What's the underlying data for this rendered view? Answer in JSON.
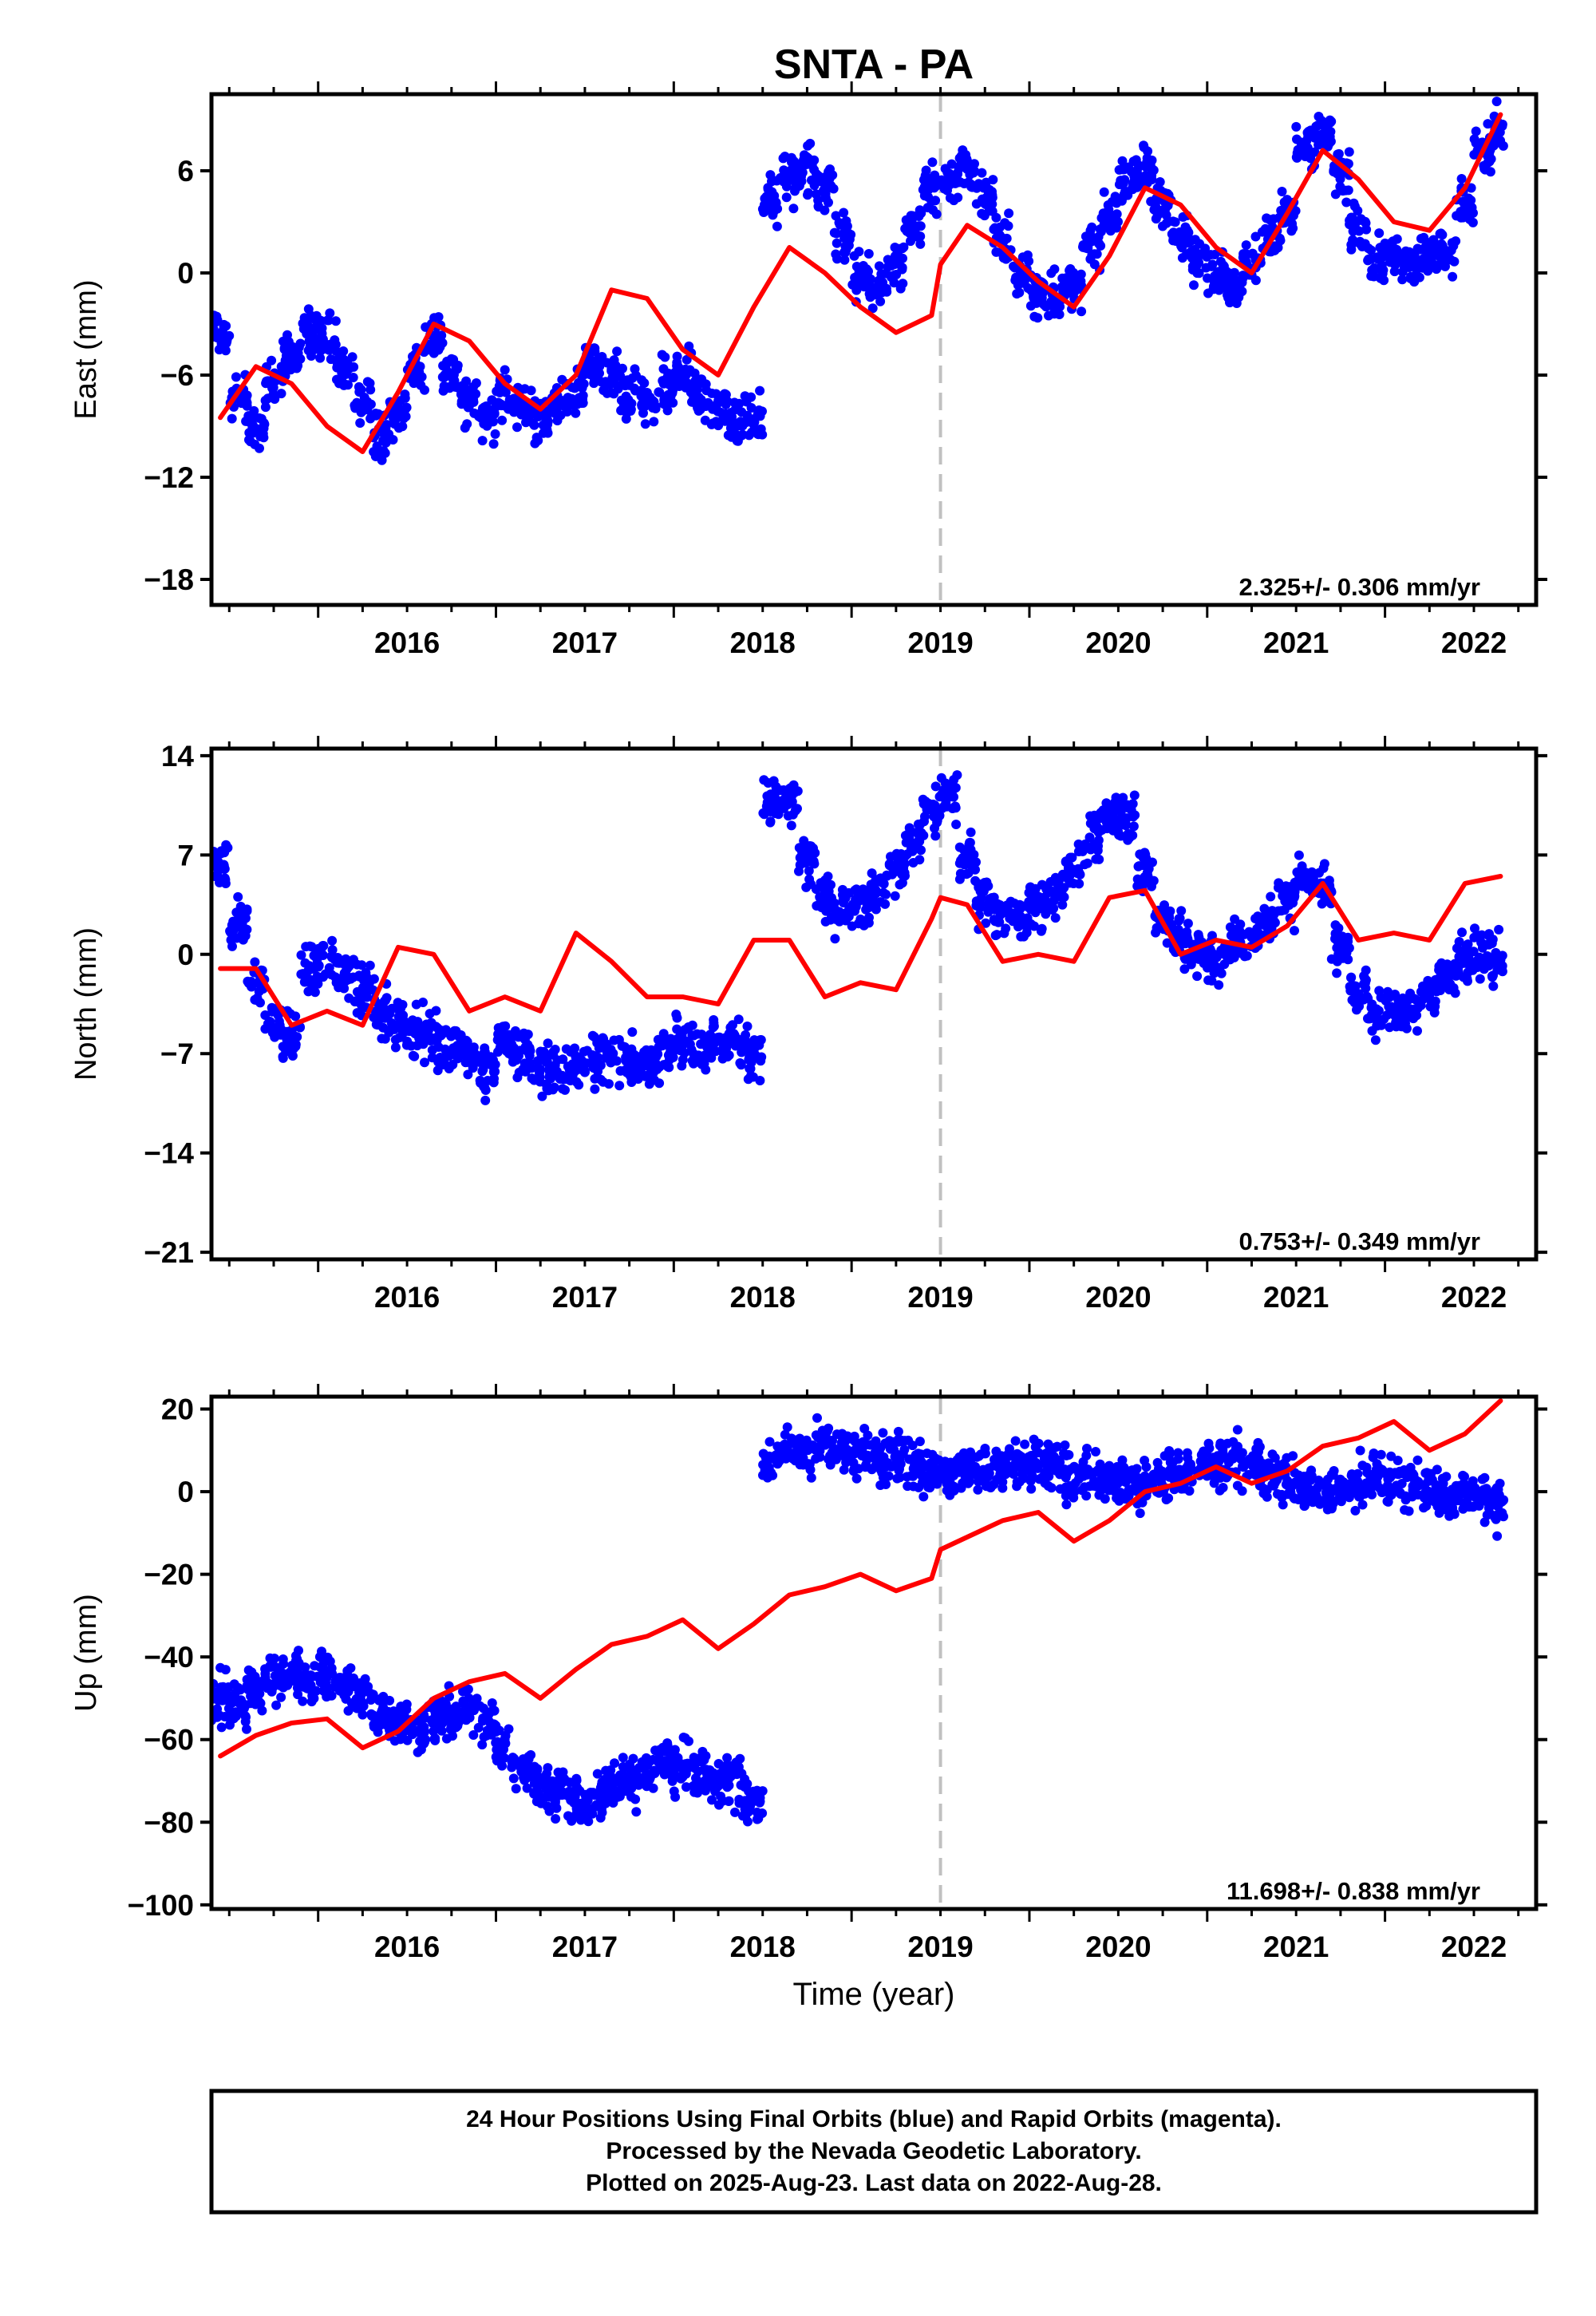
{
  "title": "SNTA - PA",
  "colors": {
    "points": "#0000ff",
    "model": "#ff0000",
    "event_line": "#c0c0c0"
  },
  "chart_data": [
    {
      "type": "scatter",
      "ylabel": "East (mm)",
      "xlabel": "",
      "xlim": [
        2015.4,
        2022.85
      ],
      "ylim": [
        -19.5,
        10.5
      ],
      "yticks": [
        {
          "value": -18,
          "label": "−18"
        },
        {
          "value": -12,
          "label": "−12"
        },
        {
          "value": -6,
          "label": "−6"
        },
        {
          "value": 0,
          "label": "0"
        },
        {
          "value": 6,
          "label": "6"
        }
      ],
      "xticks": [
        {
          "value": 2016,
          "label": "2016"
        },
        {
          "value": 2017,
          "label": "2017"
        },
        {
          "value": 2018,
          "label": "2018"
        },
        {
          "value": 2019,
          "label": "2019"
        },
        {
          "value": 2020,
          "label": "2020"
        },
        {
          "value": 2021,
          "label": "2021"
        },
        {
          "value": 2022,
          "label": "2022"
        }
      ],
      "event_line_x": 2019.5,
      "rate_text": "2.325+/- 0.306 mm/yr",
      "series": [
        {
          "kind": "points",
          "x": [
            2015.45,
            2015.55,
            2015.65,
            2015.75,
            2015.85,
            2015.95,
            2016.05,
            2016.15,
            2016.25,
            2016.35,
            2016.45,
            2016.55,
            2016.65,
            2016.75,
            2016.85,
            2016.95,
            2017.05,
            2017.15,
            2017.25,
            2017.35,
            2017.45,
            2017.55,
            2017.65,
            2017.75,
            2017.85,
            2017.95,
            2018.05,
            2018.15,
            2018.25,
            2018.35,
            2018.45,
            2018.55,
            2018.65,
            2018.75,
            2018.85,
            2018.95,
            2019.05,
            2019.15,
            2019.25,
            2019.35,
            2019.45,
            2019.55,
            2019.65,
            2019.75,
            2019.85,
            2019.95,
            2020.05,
            2020.15,
            2020.25,
            2020.35,
            2020.45,
            2020.55,
            2020.65,
            2020.75,
            2020.85,
            2020.95,
            2021.05,
            2021.15,
            2021.25,
            2021.35,
            2021.45,
            2021.55,
            2021.65,
            2021.75,
            2021.85,
            2021.95,
            2022.05,
            2022.15,
            2022.25,
            2022.35,
            2022.45,
            2022.55,
            2022.65
          ],
          "y": [
            -3.5,
            -7.5,
            -9.0,
            -6.5,
            -5.0,
            -3.5,
            -4.0,
            -5.5,
            -7.5,
            -9.5,
            -8.0,
            -5.5,
            -3.5,
            -6.0,
            -7.5,
            -8.5,
            -7.0,
            -8.0,
            -8.5,
            -7.5,
            -7.0,
            -5.5,
            -6.0,
            -7.0,
            -7.5,
            -6.5,
            -6.0,
            -7.0,
            -8.0,
            -9.0,
            -8.5,
            4.0,
            5.5,
            6.0,
            5.0,
            2.0,
            0.0,
            -1.0,
            0.5,
            3.0,
            5.0,
            5.5,
            6.0,
            4.5,
            2.0,
            0.0,
            -1.0,
            -1.5,
            -0.5,
            1.5,
            3.5,
            5.5,
            6.0,
            4.0,
            2.0,
            1.0,
            0.0,
            -0.5,
            0.5,
            2.0,
            3.5,
            7.5,
            8.0,
            5.5,
            2.5,
            1.0,
            1.0,
            0.5,
            1.0,
            1.5,
            4.0,
            7.0,
            8.5
          ]
        },
        {
          "kind": "line",
          "x": [
            2015.45,
            2015.65,
            2015.85,
            2016.05,
            2016.25,
            2016.45,
            2016.65,
            2016.85,
            2017.05,
            2017.25,
            2017.45,
            2017.65,
            2017.85,
            2018.05,
            2018.25,
            2018.45,
            2018.65,
            2018.85,
            2019.05,
            2019.25,
            2019.45,
            2019.5,
            2019.65,
            2019.85,
            2020.05,
            2020.25,
            2020.45,
            2020.65,
            2020.85,
            2021.05,
            2021.25,
            2021.45,
            2021.65,
            2021.85,
            2022.05,
            2022.25,
            2022.45,
            2022.65
          ],
          "y": [
            -8.5,
            -5.5,
            -6.5,
            -9.0,
            -10.5,
            -7.0,
            -3.0,
            -4.0,
            -6.5,
            -8.0,
            -6.0,
            -1.0,
            -1.5,
            -4.5,
            -6.0,
            -2.0,
            1.5,
            0.0,
            -2.0,
            -3.5,
            -2.5,
            0.5,
            2.8,
            1.5,
            -0.5,
            -2.0,
            1.0,
            5.0,
            4.0,
            1.5,
            0.0,
            3.5,
            7.2,
            5.5,
            3.0,
            2.5,
            5.0,
            9.3
          ]
        }
      ]
    },
    {
      "type": "scatter",
      "ylabel": "North (mm)",
      "xlabel": "",
      "xlim": [
        2015.4,
        2022.85
      ],
      "ylim": [
        -21.5,
        14.5
      ],
      "yticks": [
        {
          "value": -21,
          "label": "−21"
        },
        {
          "value": -14,
          "label": "−14"
        },
        {
          "value": -7,
          "label": "−7"
        },
        {
          "value": 0,
          "label": "0"
        },
        {
          "value": 7,
          "label": "7"
        },
        {
          "value": 14,
          "label": "14"
        }
      ],
      "xticks": [
        {
          "value": 2016,
          "label": "2016"
        },
        {
          "value": 2017,
          "label": "2017"
        },
        {
          "value": 2018,
          "label": "2018"
        },
        {
          "value": 2019,
          "label": "2019"
        },
        {
          "value": 2020,
          "label": "2020"
        },
        {
          "value": 2021,
          "label": "2021"
        },
        {
          "value": 2022,
          "label": "2022"
        }
      ],
      "event_line_x": 2019.5,
      "rate_text": "0.753+/- 0.349 mm/yr",
      "series": [
        {
          "kind": "points",
          "x": [
            2015.45,
            2015.55,
            2015.65,
            2015.75,
            2015.85,
            2015.95,
            2016.05,
            2016.15,
            2016.25,
            2016.35,
            2016.45,
            2016.55,
            2016.65,
            2016.75,
            2016.85,
            2016.95,
            2017.05,
            2017.15,
            2017.25,
            2017.35,
            2017.45,
            2017.55,
            2017.65,
            2017.75,
            2017.85,
            2017.95,
            2018.05,
            2018.15,
            2018.25,
            2018.35,
            2018.45,
            2018.55,
            2018.65,
            2018.75,
            2018.85,
            2018.95,
            2019.05,
            2019.15,
            2019.25,
            2019.35,
            2019.45,
            2019.55,
            2019.65,
            2019.75,
            2019.85,
            2019.95,
            2020.05,
            2020.15,
            2020.25,
            2020.35,
            2020.45,
            2020.55,
            2020.65,
            2020.75,
            2020.85,
            2020.95,
            2021.05,
            2021.15,
            2021.25,
            2021.35,
            2021.45,
            2021.55,
            2021.65,
            2021.75,
            2021.85,
            2021.95,
            2022.05,
            2022.15,
            2022.25,
            2022.35,
            2022.45,
            2022.55,
            2022.65
          ],
          "y": [
            6.0,
            2.0,
            -2.0,
            -5.0,
            -6.0,
            -1.0,
            0.0,
            -1.5,
            -2.5,
            -4.0,
            -5.0,
            -5.5,
            -6.0,
            -6.5,
            -7.0,
            -8.0,
            -6.0,
            -7.0,
            -8.0,
            -8.5,
            -8.0,
            -7.5,
            -7.0,
            -7.5,
            -7.5,
            -7.0,
            -6.0,
            -6.5,
            -6.0,
            -6.0,
            -7.0,
            10.5,
            11.0,
            7.0,
            4.0,
            3.0,
            3.5,
            4.5,
            6.0,
            8.0,
            10.0,
            11.0,
            7.0,
            4.0,
            2.5,
            2.5,
            3.5,
            4.0,
            6.0,
            8.0,
            9.5,
            9.5,
            6.0,
            2.5,
            1.0,
            0.0,
            -0.5,
            0.5,
            1.0,
            2.5,
            4.0,
            5.5,
            4.5,
            0.5,
            -2.5,
            -4.5,
            -4.5,
            -4.0,
            -2.5,
            -1.5,
            -0.5,
            0.0,
            -0.5
          ]
        },
        {
          "kind": "line",
          "x": [
            2015.45,
            2015.65,
            2015.85,
            2016.05,
            2016.25,
            2016.45,
            2016.65,
            2016.85,
            2017.05,
            2017.25,
            2017.45,
            2017.65,
            2017.85,
            2018.05,
            2018.25,
            2018.45,
            2018.65,
            2018.85,
            2019.05,
            2019.25,
            2019.45,
            2019.5,
            2019.65,
            2019.85,
            2020.05,
            2020.25,
            2020.45,
            2020.65,
            2020.85,
            2021.05,
            2021.25,
            2021.45,
            2021.65,
            2021.85,
            2022.05,
            2022.25,
            2022.45,
            2022.65
          ],
          "y": [
            -1.0,
            -1.0,
            -5.0,
            -4.0,
            -5.0,
            0.5,
            0.0,
            -4.0,
            -3.0,
            -4.0,
            1.5,
            -0.5,
            -3.0,
            -3.0,
            -3.5,
            1.0,
            1.0,
            -3.0,
            -2.0,
            -2.5,
            2.5,
            4.0,
            3.5,
            -0.5,
            0.0,
            -0.5,
            4.0,
            4.5,
            0.0,
            1.0,
            0.5,
            2.0,
            5.0,
            1.0,
            1.5,
            1.0,
            5.0,
            5.5
          ]
        }
      ]
    },
    {
      "type": "scatter",
      "ylabel": "Up (mm)",
      "xlabel": "Time (year)",
      "xlim": [
        2015.4,
        2022.85
      ],
      "ylim": [
        -101,
        23
      ],
      "yticks": [
        {
          "value": -100,
          "label": "−100"
        },
        {
          "value": -80,
          "label": "−80"
        },
        {
          "value": -60,
          "label": "−60"
        },
        {
          "value": -40,
          "label": "−40"
        },
        {
          "value": -20,
          "label": "−20"
        },
        {
          "value": 0,
          "label": "0"
        },
        {
          "value": 20,
          "label": "20"
        }
      ],
      "xticks": [
        {
          "value": 2016,
          "label": "2016"
        },
        {
          "value": 2017,
          "label": "2017"
        },
        {
          "value": 2018,
          "label": "2018"
        },
        {
          "value": 2019,
          "label": "2019"
        },
        {
          "value": 2020,
          "label": "2020"
        },
        {
          "value": 2021,
          "label": "2021"
        },
        {
          "value": 2022,
          "label": "2022"
        }
      ],
      "event_line_x": 2019.5,
      "rate_text": "11.698+/- 0.838 mm/yr",
      "series": [
        {
          "kind": "points",
          "x": [
            2015.45,
            2015.55,
            2015.65,
            2015.75,
            2015.85,
            2015.95,
            2016.05,
            2016.15,
            2016.25,
            2016.35,
            2016.45,
            2016.55,
            2016.65,
            2016.75,
            2016.85,
            2016.95,
            2017.05,
            2017.15,
            2017.25,
            2017.35,
            2017.45,
            2017.55,
            2017.65,
            2017.75,
            2017.85,
            2017.95,
            2018.05,
            2018.15,
            2018.25,
            2018.35,
            2018.45,
            2018.55,
            2018.65,
            2018.75,
            2018.85,
            2018.95,
            2019.05,
            2019.15,
            2019.25,
            2019.35,
            2019.45,
            2019.55,
            2019.65,
            2019.75,
            2019.85,
            2019.95,
            2020.05,
            2020.15,
            2020.25,
            2020.35,
            2020.45,
            2020.55,
            2020.65,
            2020.75,
            2020.85,
            2020.95,
            2021.05,
            2021.15,
            2021.25,
            2021.35,
            2021.45,
            2021.55,
            2021.65,
            2021.75,
            2021.85,
            2021.95,
            2022.05,
            2022.15,
            2022.25,
            2022.35,
            2022.45,
            2022.55,
            2022.65
          ],
          "y": [
            -50,
            -52,
            -48,
            -45,
            -44,
            -46,
            -45,
            -48,
            -50,
            -54,
            -56,
            -57,
            -55,
            -54,
            -52,
            -56,
            -62,
            -68,
            -70,
            -72,
            -75,
            -74,
            -72,
            -70,
            -68,
            -66,
            -66,
            -68,
            -70,
            -72,
            -75,
            8,
            10,
            9,
            12,
            10,
            9,
            8,
            9,
            7,
            5,
            5,
            6,
            4,
            6,
            7,
            6,
            5,
            4,
            5,
            3,
            2,
            1,
            3,
            4,
            5,
            7,
            7,
            6,
            3,
            2,
            1,
            -1,
            0,
            2,
            3,
            3,
            2,
            0,
            -1,
            -1,
            -2,
            -3
          ]
        },
        {
          "kind": "line",
          "x": [
            2015.45,
            2015.65,
            2015.85,
            2016.05,
            2016.25,
            2016.45,
            2016.65,
            2016.85,
            2017.05,
            2017.25,
            2017.45,
            2017.65,
            2017.85,
            2018.05,
            2018.25,
            2018.45,
            2018.65,
            2018.85,
            2019.05,
            2019.25,
            2019.45,
            2019.5,
            2019.65,
            2019.85,
            2020.05,
            2020.25,
            2020.45,
            2020.65,
            2020.85,
            2021.05,
            2021.25,
            2021.45,
            2021.65,
            2021.85,
            2022.05,
            2022.25,
            2022.45,
            2022.65
          ],
          "y": [
            -64,
            -59,
            -56,
            -55,
            -62,
            -58,
            -50,
            -46,
            -44,
            -50,
            -43,
            -37,
            -35,
            -31,
            -38,
            -32,
            -25,
            -23,
            -20,
            -24,
            -21,
            -14,
            -11,
            -7,
            -5,
            -12,
            -7,
            0,
            2,
            6,
            2,
            5,
            11,
            13,
            17,
            10,
            14,
            22
          ]
        }
      ]
    }
  ],
  "caption": {
    "line1": "24 Hour Positions Using Final Orbits (blue) and Rapid Orbits (magenta).",
    "line2": "Processed by the Nevada Geodetic Laboratory.",
    "line3": "Plotted on 2025-Aug-23. Last data on 2022-Aug-28."
  }
}
